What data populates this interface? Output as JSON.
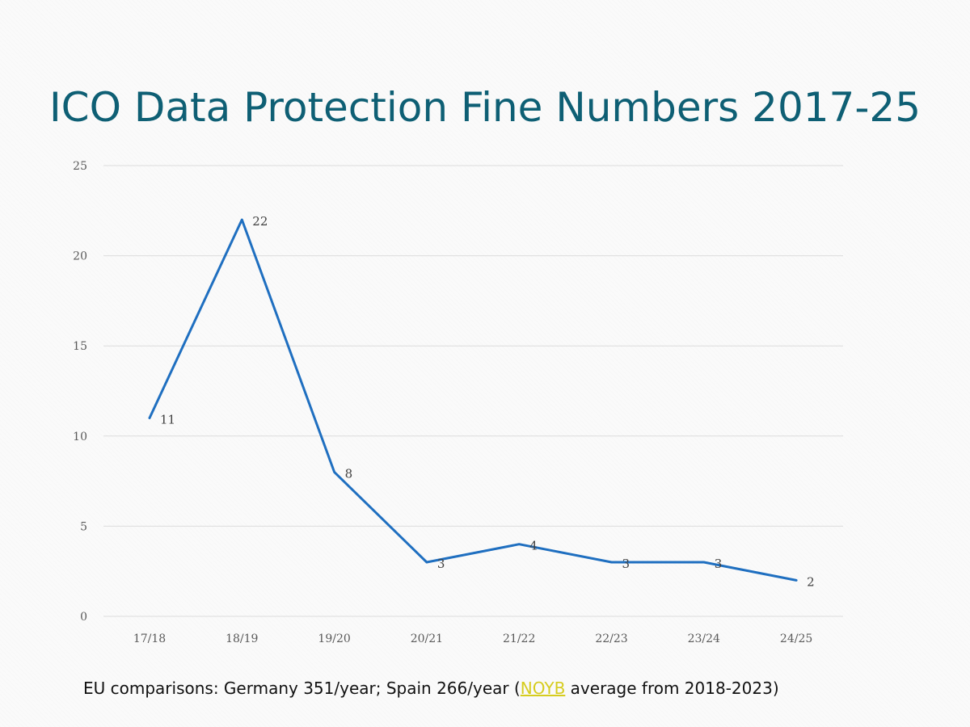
{
  "title": "ICO Data Protection Fine Numbers 2017-25",
  "chart_data": {
    "type": "line",
    "categories": [
      "17/18",
      "18/19",
      "19/20",
      "20/21",
      "21/22",
      "22/23",
      "23/24",
      "24/25"
    ],
    "series": [
      {
        "values": [
          11,
          22,
          8,
          3,
          4,
          3,
          3,
          2
        ]
      }
    ],
    "data_labels": [
      "11",
      "22",
      "8",
      "3",
      "4",
      "3",
      "3",
      "2"
    ],
    "ylim": [
      0,
      25
    ],
    "yticks": [
      0,
      5,
      10,
      15,
      20,
      25
    ],
    "ytick_labels": [
      "0",
      "5",
      "10",
      "15",
      "20",
      "25"
    ],
    "grid": true,
    "line_color": "#1f6fc0",
    "xlabel": "",
    "ylabel": ""
  },
  "footnote": {
    "before": "EU comparisons: Germany 351/year; Spain 266/year (",
    "link": "NOYB",
    "after": " average from 2018-2023)"
  },
  "colors": {
    "title": "#0e5f74",
    "link": "#d6cc1e"
  }
}
